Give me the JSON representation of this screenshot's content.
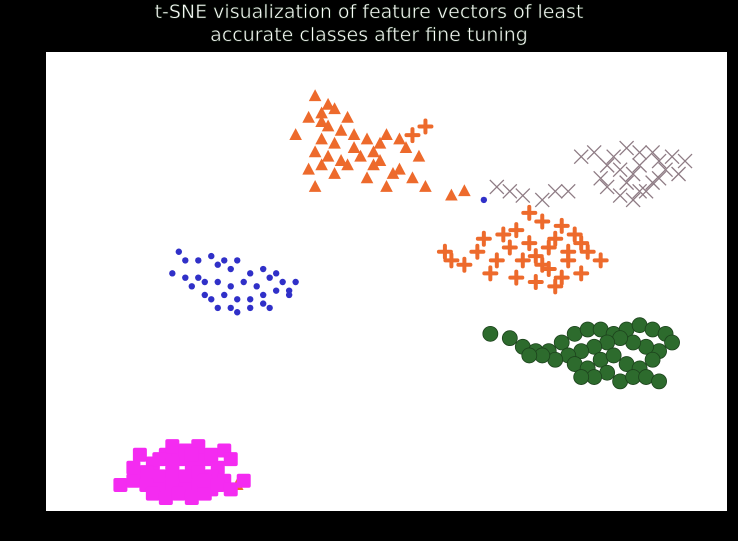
{
  "chart_data": {
    "type": "scatter",
    "title_lines": [
      "t-SNE visualization of feature vectors of least",
      "accurate classes after fine tuning"
    ],
    "xlabel": "",
    "ylabel": "",
    "xlim": [
      0,
      100
    ],
    "ylim": [
      0,
      100
    ],
    "grid": false,
    "axis_ticks": false,
    "series": [
      {
        "marker": "triangle",
        "color": "#ed6a2c",
        "points": [
          [
            39,
            93
          ],
          [
            41,
            91
          ],
          [
            40,
            89
          ],
          [
            42,
            90
          ],
          [
            40,
            87
          ],
          [
            44,
            88
          ],
          [
            38,
            88
          ],
          [
            36,
            84
          ],
          [
            41,
            86
          ],
          [
            43,
            85
          ],
          [
            45,
            84
          ],
          [
            47,
            83
          ],
          [
            49,
            82
          ],
          [
            50,
            84
          ],
          [
            52,
            83
          ],
          [
            53,
            81
          ],
          [
            48,
            80
          ],
          [
            45,
            81
          ],
          [
            42,
            82
          ],
          [
            40,
            83
          ],
          [
            39,
            80
          ],
          [
            41,
            79
          ],
          [
            43,
            78
          ],
          [
            46,
            79
          ],
          [
            48,
            77
          ],
          [
            49,
            78
          ],
          [
            44,
            77
          ],
          [
            40,
            77
          ],
          [
            38,
            76
          ],
          [
            42,
            75
          ],
          [
            47,
            74
          ],
          [
            51,
            75
          ],
          [
            52,
            76
          ],
          [
            55,
            79
          ],
          [
            54,
            74
          ],
          [
            50,
            72
          ],
          [
            56,
            72
          ],
          [
            39,
            72
          ],
          [
            62,
            71
          ],
          [
            60,
            70
          ],
          [
            27,
            3
          ]
        ]
      },
      {
        "marker": "plus",
        "color": "#ed6a2c",
        "points": [
          [
            56,
            86
          ],
          [
            54,
            84
          ],
          [
            72,
            66
          ],
          [
            74,
            64
          ],
          [
            70,
            62
          ],
          [
            76,
            60
          ],
          [
            72,
            59
          ],
          [
            68,
            61
          ],
          [
            75,
            58
          ],
          [
            78,
            57
          ],
          [
            73,
            56
          ],
          [
            69,
            58
          ],
          [
            65,
            60
          ],
          [
            77,
            63
          ],
          [
            79,
            61
          ],
          [
            80,
            59
          ],
          [
            78,
            55
          ],
          [
            74,
            54
          ],
          [
            71,
            55
          ],
          [
            67,
            55
          ],
          [
            64,
            57
          ],
          [
            62,
            54
          ],
          [
            60,
            55
          ],
          [
            59,
            57
          ],
          [
            70,
            51
          ],
          [
            73,
            50
          ],
          [
            77,
            51
          ],
          [
            76,
            49
          ],
          [
            80,
            52
          ],
          [
            81,
            57
          ],
          [
            83,
            55
          ],
          [
            75,
            53
          ],
          [
            66,
            52
          ]
        ]
      },
      {
        "marker": "x",
        "color": "#8e7b84",
        "points": [
          [
            67,
            72
          ],
          [
            69,
            71
          ],
          [
            71,
            70
          ],
          [
            74,
            69
          ],
          [
            76,
            71
          ],
          [
            78,
            71
          ],
          [
            80,
            79
          ],
          [
            82,
            80
          ],
          [
            84,
            77
          ],
          [
            85,
            79
          ],
          [
            83,
            74
          ],
          [
            86,
            76
          ],
          [
            88,
            75
          ],
          [
            89,
            77
          ],
          [
            87,
            81
          ],
          [
            89,
            80
          ],
          [
            91,
            80
          ],
          [
            92,
            78
          ],
          [
            94,
            79
          ],
          [
            93,
            76
          ],
          [
            91,
            73
          ],
          [
            89,
            71
          ],
          [
            87,
            73
          ],
          [
            84,
            72
          ],
          [
            86,
            70
          ],
          [
            88,
            69
          ],
          [
            90,
            71
          ],
          [
            92,
            74
          ],
          [
            95,
            75
          ],
          [
            96,
            78
          ]
        ]
      },
      {
        "marker": "circle",
        "color": "#3030c8",
        "points": [
          [
            65,
            69
          ],
          [
            18,
            57
          ],
          [
            19,
            55
          ],
          [
            21,
            55
          ],
          [
            23,
            56
          ],
          [
            24,
            54
          ],
          [
            25,
            55
          ],
          [
            26,
            53
          ],
          [
            27,
            55
          ],
          [
            29,
            52
          ],
          [
            31,
            53
          ],
          [
            32,
            51
          ],
          [
            33,
            52
          ],
          [
            34,
            50
          ],
          [
            35,
            48
          ],
          [
            36,
            50
          ],
          [
            17,
            52
          ],
          [
            19,
            51
          ],
          [
            21,
            51
          ],
          [
            22,
            50
          ],
          [
            24,
            50
          ],
          [
            26,
            49
          ],
          [
            28,
            50
          ],
          [
            30,
            49
          ],
          [
            31,
            47
          ],
          [
            33,
            48
          ],
          [
            35,
            47
          ],
          [
            20,
            49
          ],
          [
            22,
            47
          ],
          [
            23,
            46
          ],
          [
            25,
            47
          ],
          [
            27,
            46
          ],
          [
            29,
            46
          ],
          [
            31,
            45
          ],
          [
            24,
            44
          ],
          [
            26,
            44
          ],
          [
            27,
            43
          ],
          [
            29,
            44
          ],
          [
            32,
            44
          ]
        ]
      },
      {
        "marker": "circle",
        "color": "#2d6b2d",
        "points": [
          [
            66,
            38
          ],
          [
            69,
            37
          ],
          [
            71,
            35
          ],
          [
            73,
            34
          ],
          [
            75,
            34
          ],
          [
            77,
            36
          ],
          [
            79,
            38
          ],
          [
            81,
            39
          ],
          [
            83,
            39
          ],
          [
            85,
            38
          ],
          [
            87,
            39
          ],
          [
            89,
            40
          ],
          [
            91,
            39
          ],
          [
            93,
            38
          ],
          [
            94,
            36
          ],
          [
            92,
            34
          ],
          [
            90,
            35
          ],
          [
            88,
            36
          ],
          [
            86,
            37
          ],
          [
            84,
            36
          ],
          [
            82,
            35
          ],
          [
            80,
            34
          ],
          [
            78,
            33
          ],
          [
            76,
            32
          ],
          [
            74,
            33
          ],
          [
            72,
            33
          ],
          [
            79,
            31
          ],
          [
            81,
            30
          ],
          [
            83,
            32
          ],
          [
            85,
            33
          ],
          [
            87,
            31
          ],
          [
            89,
            30
          ],
          [
            91,
            32
          ],
          [
            84,
            29
          ],
          [
            82,
            28
          ],
          [
            80,
            28
          ],
          [
            86,
            27
          ],
          [
            88,
            28
          ],
          [
            90,
            28
          ],
          [
            92,
            27
          ]
        ]
      },
      {
        "marker": "square",
        "color": "#f42bf1",
        "points": [
          [
            12,
            10
          ],
          [
            14,
            8
          ],
          [
            16,
            10
          ],
          [
            18,
            9
          ],
          [
            20,
            8
          ],
          [
            22,
            9
          ],
          [
            24,
            7
          ],
          [
            13,
            6
          ],
          [
            15,
            5
          ],
          [
            17,
            6
          ],
          [
            19,
            5
          ],
          [
            21,
            6
          ],
          [
            23,
            5
          ],
          [
            25,
            4
          ],
          [
            9,
            3
          ],
          [
            11,
            4
          ],
          [
            13,
            3
          ],
          [
            15,
            2
          ],
          [
            17,
            3
          ],
          [
            19,
            2
          ],
          [
            21,
            3
          ],
          [
            23,
            2
          ],
          [
            14,
            1
          ],
          [
            16,
            0
          ],
          [
            18,
            1
          ],
          [
            20,
            0
          ],
          [
            22,
            1
          ],
          [
            11,
            7
          ],
          [
            17,
            12
          ],
          [
            19,
            11
          ],
          [
            21,
            12
          ],
          [
            23,
            10
          ],
          [
            25,
            11
          ],
          [
            26,
            9
          ],
          [
            22,
            4
          ],
          [
            24,
            3
          ],
          [
            20,
            10
          ],
          [
            15,
            9
          ],
          [
            17,
            8
          ],
          [
            26,
            2
          ],
          [
            28,
            4
          ]
        ]
      }
    ]
  }
}
